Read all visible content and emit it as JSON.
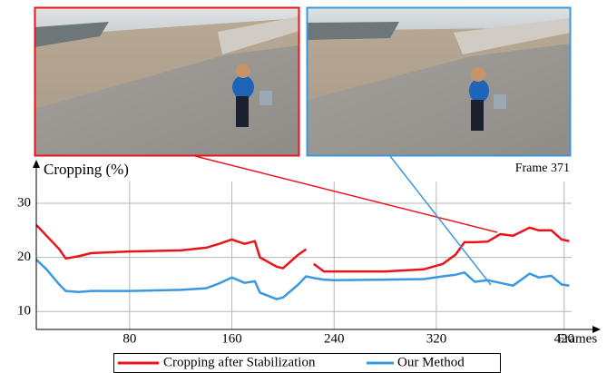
{
  "chart_data": {
    "type": "line",
    "ylabel": "Cropping (%)",
    "xlabel": "Frames",
    "annotation": "Frame 371",
    "xlim": [
      7,
      440
    ],
    "ylim": [
      6.7,
      37.7
    ],
    "xticks": [
      80,
      160,
      240,
      320,
      420
    ],
    "yticks": [
      10,
      20,
      30
    ],
    "grid": true,
    "x": [
      7,
      15,
      25,
      30,
      40,
      50,
      80,
      120,
      140,
      150,
      160,
      170,
      178,
      182,
      195,
      200,
      212,
      218,
      222,
      224,
      232,
      240,
      280,
      310,
      325,
      335,
      342,
      350,
      360,
      370,
      380,
      393,
      400,
      410,
      418,
      424
    ],
    "series": [
      {
        "name": "Cropping after Stabilization",
        "color": "#e8141b",
        "values": [
          26,
          24,
          21.5,
          19.8,
          20.2,
          20.8,
          21.1,
          21.3,
          21.8,
          22.5,
          23.3,
          22.5,
          23,
          20,
          18.3,
          18,
          20.5,
          21.5,
          null,
          18.8,
          17.4,
          17.4,
          17.4,
          17.8,
          18.8,
          20.5,
          22.8,
          22.8,
          22.9,
          24.3,
          24,
          25.5,
          25,
          25,
          23.3,
          23
        ]
      },
      {
        "name": "Our Method",
        "color": "#3a98e0",
        "values": [
          19.6,
          17.8,
          15,
          13.8,
          13.6,
          13.8,
          13.8,
          14,
          14.3,
          15.2,
          16.3,
          15.3,
          15.6,
          13.5,
          12.3,
          12.6,
          15,
          16.5,
          16.3,
          16.2,
          15.9,
          15.8,
          15.9,
          16,
          16.5,
          16.8,
          17.2,
          15.5,
          15.8,
          15.3,
          14.8,
          17,
          16.3,
          16.6,
          15,
          14.8
        ]
      }
    ],
    "legend": "bottom"
  }
}
